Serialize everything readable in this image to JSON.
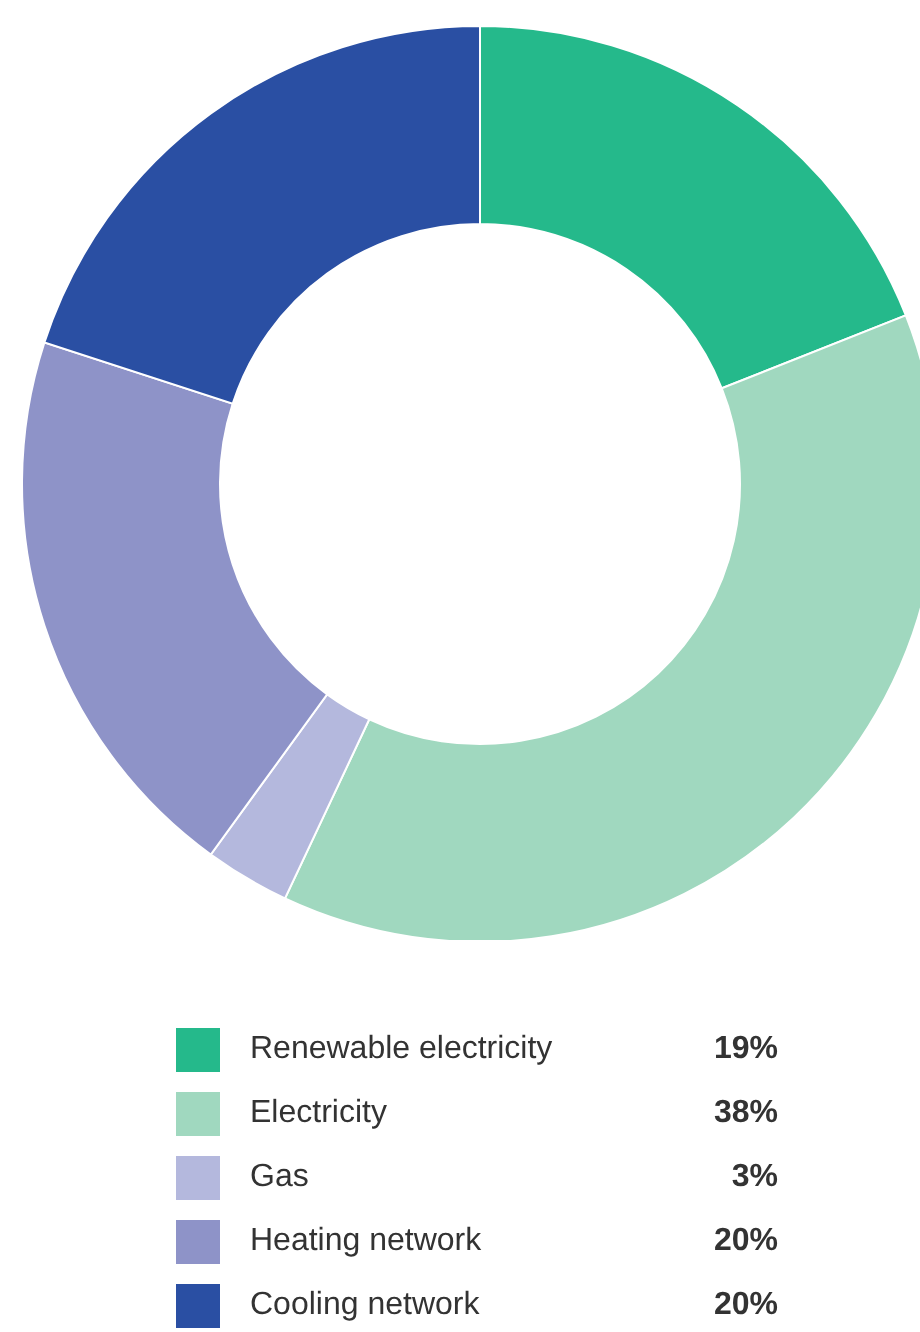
{
  "chart_data": {
    "type": "donut",
    "categories": [
      "Renewable electricity",
      "Electricity",
      "Gas",
      "Heating network",
      "Cooling network"
    ],
    "values": [
      19,
      38,
      3,
      20,
      20
    ],
    "colors": [
      "#25b98b",
      "#a0d8bf",
      "#b4b8dd",
      "#8e93c8",
      "#2a4fa3"
    ],
    "value_labels": [
      "19%",
      "38%",
      "3%",
      "20%",
      "20%"
    ],
    "legend": "bottom"
  }
}
